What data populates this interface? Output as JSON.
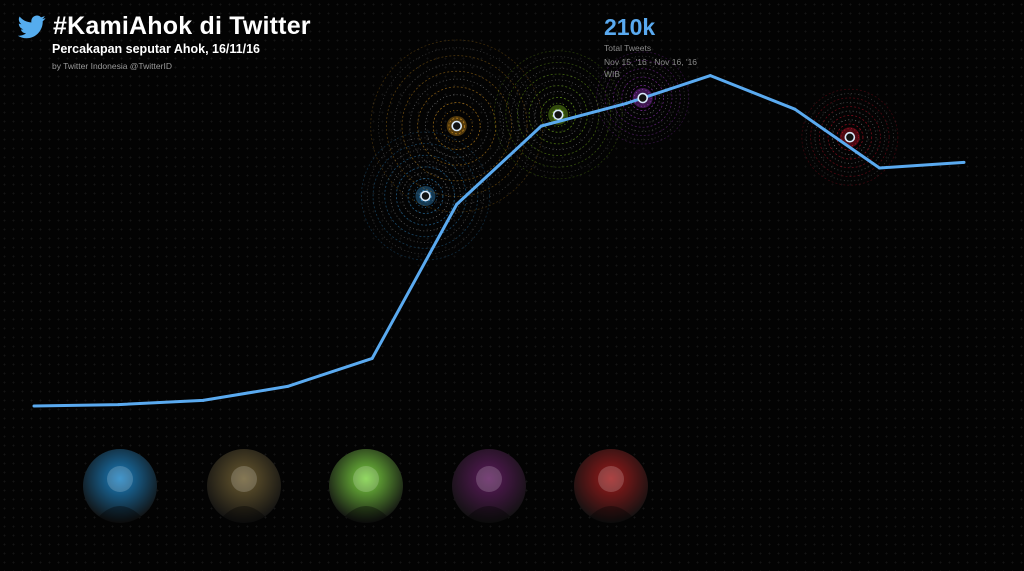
{
  "header": {
    "title": "#KamiAhok di Twitter",
    "subtitle": "Percakapan seputar Ahok, 16/11/16",
    "byline": "by Twitter Indonesia @TwitterID",
    "brand_icon": "twitter-bird-icon"
  },
  "stats": {
    "total_value": "210k",
    "total_label": "Total Tweets",
    "range_label": "Nov 15, '16 - Nov 16, '16 WIB"
  },
  "colors": {
    "line": "#5aaaf0",
    "highlights": [
      "#3aa0e8",
      "#e8a020",
      "#8ad020",
      "#b040e0",
      "#e01830"
    ]
  },
  "chart_data": {
    "type": "line",
    "title": "#KamiAhok di Twitter",
    "x": [
      0,
      1,
      2,
      3,
      4,
      5,
      6,
      7,
      8,
      9,
      10,
      11
    ],
    "values": [
      5,
      5.5,
      7,
      12,
      22,
      77,
      105,
      113,
      123,
      111,
      90,
      92
    ],
    "ylim": [
      0,
      150
    ],
    "xlabel": "",
    "ylabel": "",
    "grid": false,
    "highlights": [
      {
        "x": 4.63,
        "y": 80,
        "color": "#3aa0e8"
      },
      {
        "x": 5,
        "y": 105,
        "color": "#e8a020"
      },
      {
        "x": 6.2,
        "y": 109,
        "color": "#8ad020"
      },
      {
        "x": 7.2,
        "y": 115,
        "color": "#b040e0"
      },
      {
        "x": 9.65,
        "y": 101,
        "color": "#e01830"
      }
    ]
  },
  "avatars": [
    {
      "name": "avatar-1",
      "color": "#1a7fc0"
    },
    {
      "name": "avatar-2",
      "color": "#6a5a30"
    },
    {
      "name": "avatar-3",
      "color": "#7ad040"
    },
    {
      "name": "avatar-4",
      "color": "#5a1a5a"
    },
    {
      "name": "avatar-5",
      "color": "#9a1a1a"
    }
  ]
}
